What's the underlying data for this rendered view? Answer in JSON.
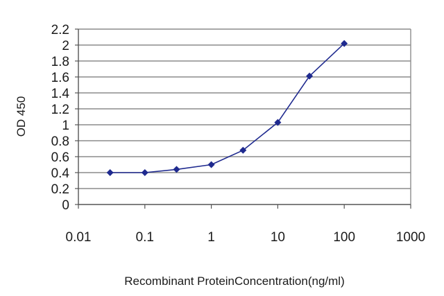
{
  "chart_data": {
    "type": "line",
    "title": "",
    "xlabel": "Recombinant ProteinConcentration(ng/ml)",
    "ylabel": "OD 450",
    "xscale": "log",
    "xlim": [
      0.01,
      1000
    ],
    "ylim": [
      0,
      2.2
    ],
    "x_ticks": [
      "0.01",
      "0.1",
      "1",
      "10",
      "100",
      "1000"
    ],
    "y_ticks": [
      "0",
      "0.2",
      "0.4",
      "0.6",
      "0.8",
      "1",
      "1.2",
      "1.4",
      "1.6",
      "1.8",
      "2",
      "2.2"
    ],
    "grid": "horizontal",
    "legend": "none",
    "series": [
      {
        "x": [
          0.03,
          0.1,
          0.3,
          1,
          3,
          10,
          30,
          100
        ],
        "y": [
          0.4,
          0.4,
          0.44,
          0.5,
          0.68,
          1.03,
          1.61,
          2.02
        ],
        "color": "#1f2a8f",
        "marker": "diamond"
      }
    ]
  },
  "colors": {
    "grid": "#8c8c8c",
    "axis": "#555555",
    "line": "#1f2a8f"
  }
}
